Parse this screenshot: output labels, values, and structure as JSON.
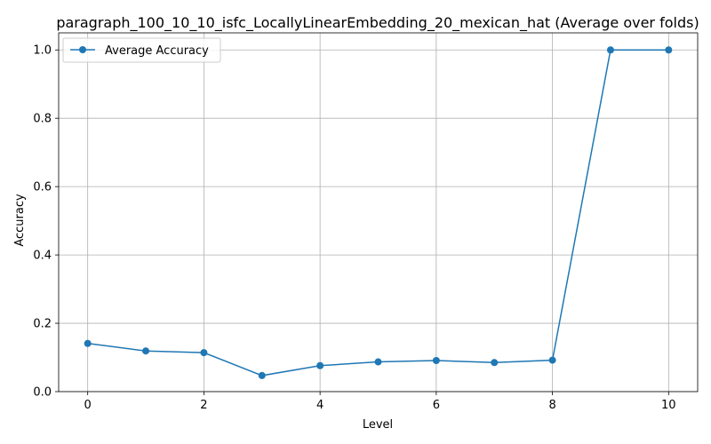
{
  "chart_data": {
    "type": "line",
    "title": "paragraph_100_10_10_isfc_LocallyLinearEmbedding_20_mexican_hat (Average over folds)",
    "xlabel": "Level",
    "ylabel": "Accuracy",
    "xlim": [
      -0.5,
      10.5
    ],
    "ylim": [
      0.0,
      1.05
    ],
    "xticks": [
      0,
      2,
      4,
      6,
      8,
      10
    ],
    "yticks": [
      0.0,
      0.2,
      0.4,
      0.6,
      0.8,
      1.0
    ],
    "xtick_labels": [
      "0",
      "2",
      "4",
      "6",
      "8",
      "10"
    ],
    "ytick_labels": [
      "0.0",
      "0.2",
      "0.4",
      "0.6",
      "0.8",
      "1.0"
    ],
    "grid": true,
    "legend_position": "top-left",
    "series": [
      {
        "name": "Average Accuracy",
        "color": "#1f77b4",
        "marker": "circle",
        "x": [
          0,
          1,
          2,
          3,
          4,
          5,
          6,
          7,
          8,
          9,
          10
        ],
        "y": [
          0.141,
          0.119,
          0.114,
          0.047,
          0.076,
          0.087,
          0.091,
          0.085,
          0.092,
          1.0,
          1.0
        ]
      }
    ]
  }
}
